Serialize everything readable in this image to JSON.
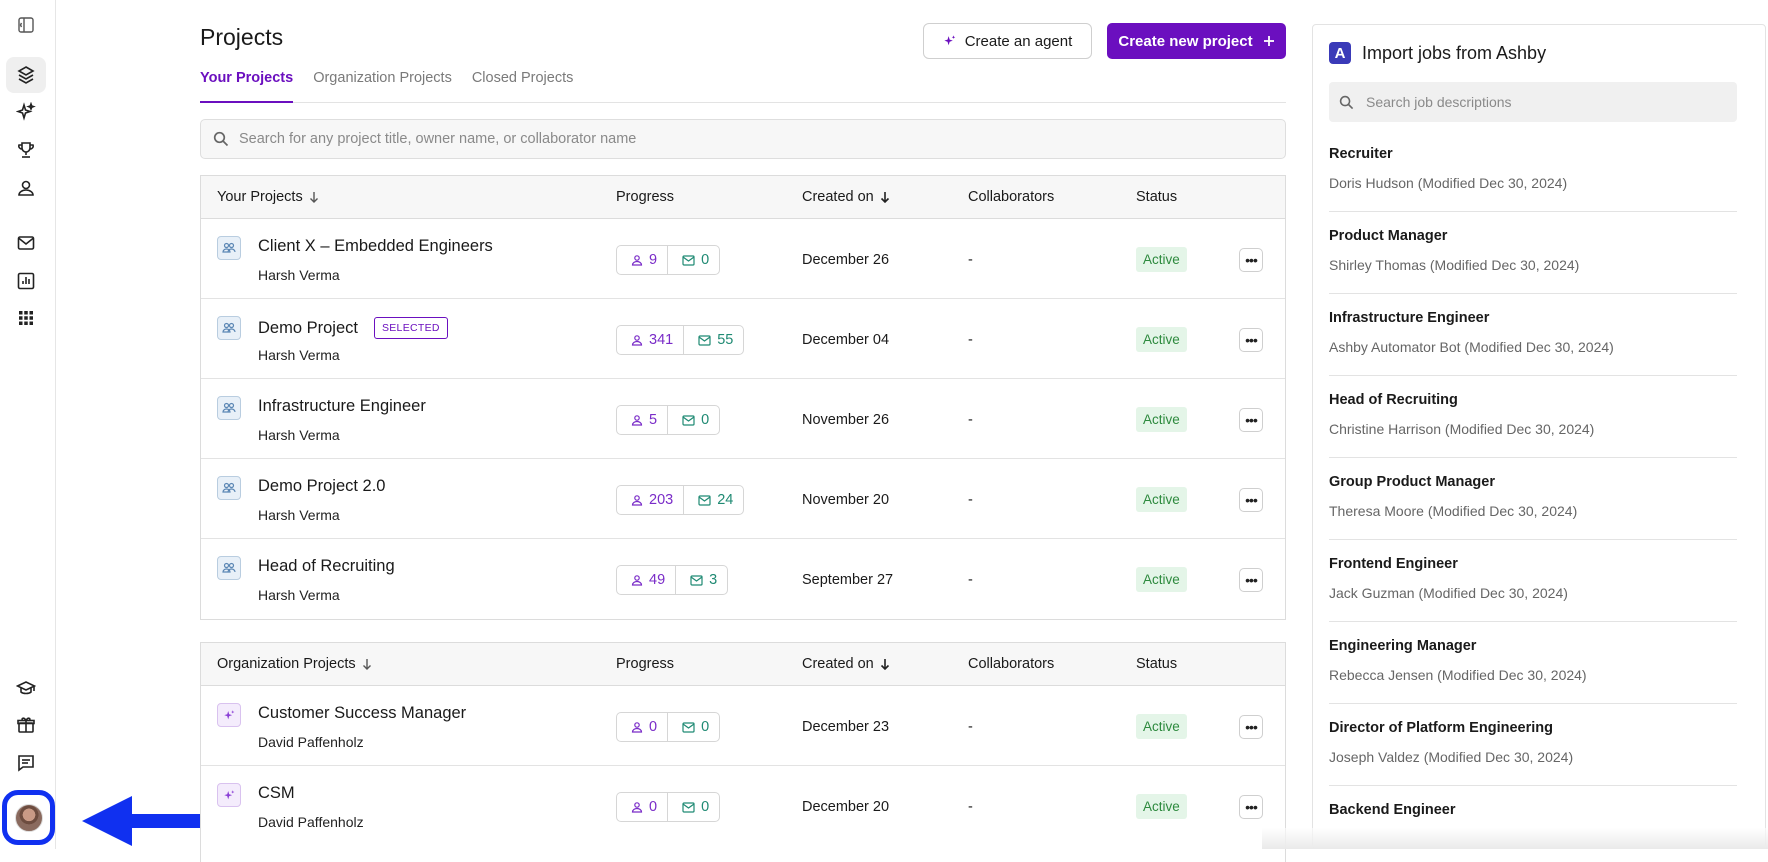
{
  "rail": {
    "top_icons": [
      "sidebar-toggle-icon",
      "projects-icon",
      "sparkle-icon",
      "trophy-icon",
      "person-icon",
      "mail-icon",
      "analytics-icon",
      "apps-grid-icon"
    ],
    "bottom_icons": [
      "graduation-cap-icon",
      "gift-icon",
      "feedback-icon",
      "user-avatar"
    ]
  },
  "header": {
    "title": "Projects",
    "create_agent_label": "Create an agent",
    "create_project_label": "Create new project"
  },
  "tabs": [
    {
      "label": "Your Projects",
      "active": true
    },
    {
      "label": "Organization Projects",
      "active": false
    },
    {
      "label": "Closed Projects",
      "active": false
    }
  ],
  "search": {
    "placeholder": "Search for any project title, owner name, or collaborator name"
  },
  "your_projects": {
    "columns": {
      "name": "Your Projects",
      "progress": "Progress",
      "created": "Created on",
      "collaborators": "Collaborators",
      "status": "Status"
    },
    "rows": [
      {
        "title": "Client X – Embedded Engineers",
        "owner": "Harsh Verma",
        "people": "9",
        "mail": "0",
        "created": "December 26",
        "collaborators": "-",
        "status": "Active",
        "selected": ""
      },
      {
        "title": "Demo Project",
        "owner": "Harsh Verma",
        "people": "341",
        "mail": "55",
        "created": "December 04",
        "collaborators": "-",
        "status": "Active",
        "selected": "SELECTED"
      },
      {
        "title": "Infrastructure Engineer",
        "owner": "Harsh Verma",
        "people": "5",
        "mail": "0",
        "created": "November 26",
        "collaborators": "-",
        "status": "Active",
        "selected": ""
      },
      {
        "title": "Demo Project 2.0",
        "owner": "Harsh Verma",
        "people": "203",
        "mail": "24",
        "created": "November 20",
        "collaborators": "-",
        "status": "Active",
        "selected": ""
      },
      {
        "title": "Head of Recruiting",
        "owner": "Harsh Verma",
        "people": "49",
        "mail": "3",
        "created": "September 27",
        "collaborators": "-",
        "status": "Active",
        "selected": ""
      }
    ]
  },
  "org_projects": {
    "columns": {
      "name": "Organization Projects",
      "progress": "Progress",
      "created": "Created on",
      "collaborators": "Collaborators",
      "status": "Status"
    },
    "rows": [
      {
        "title": "Customer Success Manager",
        "owner": "David Paffenholz",
        "people": "0",
        "mail": "0",
        "created": "December 23",
        "collaborators": "-",
        "status": "Active"
      },
      {
        "title": "CSM",
        "owner": "David Paffenholz",
        "people": "0",
        "mail": "0",
        "created": "December 20",
        "collaborators": "-",
        "status": "Active"
      }
    ]
  },
  "ashby": {
    "title": "Import jobs from Ashby",
    "logo_letter": "A",
    "search_placeholder": "Search job descriptions",
    "jobs": [
      {
        "title": "Recruiter",
        "meta": "Doris Hudson (Modified Dec 30, 2024)"
      },
      {
        "title": "Product Manager",
        "meta": "Shirley Thomas (Modified Dec 30, 2024)"
      },
      {
        "title": "Infrastructure Engineer",
        "meta": "Ashby Automator Bot (Modified Dec 30, 2024)"
      },
      {
        "title": "Head of Recruiting",
        "meta": "Christine Harrison (Modified Dec 30, 2024)"
      },
      {
        "title": "Group Product Manager",
        "meta": "Theresa Moore (Modified Dec 30, 2024)"
      },
      {
        "title": "Frontend Engineer",
        "meta": "Jack Guzman (Modified Dec 30, 2024)"
      },
      {
        "title": "Engineering Manager",
        "meta": "Rebecca Jensen (Modified Dec 30, 2024)"
      },
      {
        "title": "Director of Platform Engineering",
        "meta": "Joseph Valdez (Modified Dec 30, 2024)"
      },
      {
        "title": "Backend Engineer",
        "meta": ""
      }
    ]
  },
  "colors": {
    "accent": "#6b0fbf",
    "annotation_blue": "#1030f0",
    "active_badge_bg": "#e4f5e8",
    "active_badge_text": "#2d8a3e"
  }
}
